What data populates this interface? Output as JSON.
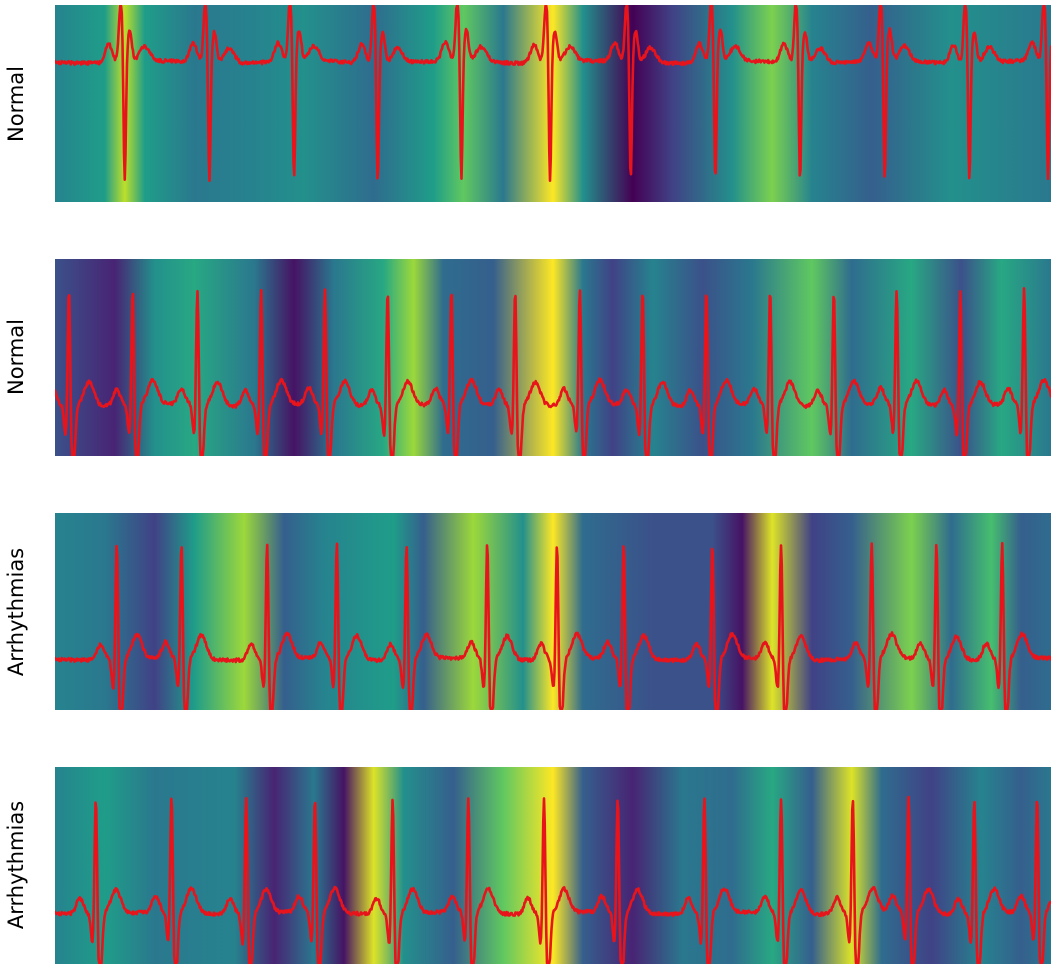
{
  "chart_data": [
    {
      "type": "line",
      "label": "Normal",
      "trace_color": "#e8141c",
      "beats": [
        0.07,
        0.155,
        0.24,
        0.324,
        0.408,
        0.497,
        0.578,
        0.663,
        0.748,
        0.833,
        0.918,
        0.997
      ],
      "beat_polarity": "inverted",
      "attention_bands": [
        {
          "x": 0.0,
          "v": 0.45
        },
        {
          "x": 0.05,
          "v": 0.55
        },
        {
          "x": 0.07,
          "v": 0.9
        },
        {
          "x": 0.09,
          "v": 0.55
        },
        {
          "x": 0.14,
          "v": 0.4
        },
        {
          "x": 0.2,
          "v": 0.45
        },
        {
          "x": 0.25,
          "v": 0.5
        },
        {
          "x": 0.32,
          "v": 0.35
        },
        {
          "x": 0.38,
          "v": 0.55
        },
        {
          "x": 0.41,
          "v": 0.75
        },
        {
          "x": 0.45,
          "v": 0.4
        },
        {
          "x": 0.5,
          "v": 1.0
        },
        {
          "x": 0.53,
          "v": 0.5
        },
        {
          "x": 0.58,
          "v": 0.0
        },
        {
          "x": 0.62,
          "v": 0.2
        },
        {
          "x": 0.68,
          "v": 0.5
        },
        {
          "x": 0.72,
          "v": 0.8
        },
        {
          "x": 0.76,
          "v": 0.45
        },
        {
          "x": 0.82,
          "v": 0.3
        },
        {
          "x": 0.9,
          "v": 0.5
        },
        {
          "x": 1.0,
          "v": 0.4
        }
      ]
    },
    {
      "type": "line",
      "label": "Normal",
      "trace_color": "#e8141c",
      "beats": [
        0.014,
        0.078,
        0.143,
        0.207,
        0.271,
        0.334,
        0.398,
        0.462,
        0.527,
        0.59,
        0.654,
        0.718,
        0.782,
        0.845,
        0.909,
        0.973
      ],
      "beat_polarity": "upright",
      "attention_bands": [
        {
          "x": 0.0,
          "v": 0.25
        },
        {
          "x": 0.06,
          "v": 0.1
        },
        {
          "x": 0.1,
          "v": 0.5
        },
        {
          "x": 0.14,
          "v": 0.6
        },
        {
          "x": 0.2,
          "v": 0.4
        },
        {
          "x": 0.24,
          "v": 0.05
        },
        {
          "x": 0.28,
          "v": 0.4
        },
        {
          "x": 0.33,
          "v": 0.6
        },
        {
          "x": 0.36,
          "v": 0.85
        },
        {
          "x": 0.39,
          "v": 0.35
        },
        {
          "x": 0.44,
          "v": 0.3
        },
        {
          "x": 0.5,
          "v": 1.0
        },
        {
          "x": 0.53,
          "v": 0.4
        },
        {
          "x": 0.56,
          "v": 0.2
        },
        {
          "x": 0.6,
          "v": 0.45
        },
        {
          "x": 0.65,
          "v": 0.25
        },
        {
          "x": 0.7,
          "v": 0.4
        },
        {
          "x": 0.76,
          "v": 0.75
        },
        {
          "x": 0.8,
          "v": 0.35
        },
        {
          "x": 0.86,
          "v": 0.6
        },
        {
          "x": 0.91,
          "v": 0.25
        },
        {
          "x": 0.95,
          "v": 0.6
        },
        {
          "x": 1.0,
          "v": 0.4
        }
      ]
    },
    {
      "type": "line",
      "label": "Arrhythmias",
      "trace_color": "#e8141c",
      "beats": [
        0.062,
        0.127,
        0.213,
        0.283,
        0.353,
        0.434,
        0.504,
        0.571,
        0.66,
        0.729,
        0.82,
        0.885,
        0.951
      ],
      "beat_polarity": "upright",
      "attention_bands": [
        {
          "x": 0.0,
          "v": 0.45
        },
        {
          "x": 0.05,
          "v": 0.4
        },
        {
          "x": 0.1,
          "v": 0.2
        },
        {
          "x": 0.14,
          "v": 0.55
        },
        {
          "x": 0.19,
          "v": 0.85
        },
        {
          "x": 0.23,
          "v": 0.3
        },
        {
          "x": 0.27,
          "v": 0.45
        },
        {
          "x": 0.34,
          "v": 0.55
        },
        {
          "x": 0.37,
          "v": 0.3
        },
        {
          "x": 0.42,
          "v": 0.85
        },
        {
          "x": 0.47,
          "v": 0.5
        },
        {
          "x": 0.5,
          "v": 1.0
        },
        {
          "x": 0.53,
          "v": 0.35
        },
        {
          "x": 0.6,
          "v": 0.25
        },
        {
          "x": 0.66,
          "v": 0.25
        },
        {
          "x": 0.69,
          "v": 0.05
        },
        {
          "x": 0.72,
          "v": 0.95
        },
        {
          "x": 0.76,
          "v": 0.2
        },
        {
          "x": 0.8,
          "v": 0.3
        },
        {
          "x": 0.86,
          "v": 0.8
        },
        {
          "x": 0.9,
          "v": 0.35
        },
        {
          "x": 0.94,
          "v": 0.7
        },
        {
          "x": 0.97,
          "v": 0.3
        },
        {
          "x": 1.0,
          "v": 0.35
        }
      ]
    },
    {
      "type": "line",
      "label": "Arrhythmias",
      "trace_color": "#e8141c",
      "beats": [
        0.041,
        0.117,
        0.192,
        0.261,
        0.339,
        0.415,
        0.491,
        0.565,
        0.652,
        0.729,
        0.801,
        0.857,
        0.923,
        0.986
      ],
      "beat_polarity": "upright",
      "attention_bands": [
        {
          "x": 0.0,
          "v": 0.45
        },
        {
          "x": 0.05,
          "v": 0.55
        },
        {
          "x": 0.1,
          "v": 0.4
        },
        {
          "x": 0.18,
          "v": 0.45
        },
        {
          "x": 0.22,
          "v": 0.1
        },
        {
          "x": 0.26,
          "v": 0.4
        },
        {
          "x": 0.29,
          "v": 0.05
        },
        {
          "x": 0.32,
          "v": 0.95
        },
        {
          "x": 0.35,
          "v": 0.5
        },
        {
          "x": 0.4,
          "v": 0.3
        },
        {
          "x": 0.45,
          "v": 0.75
        },
        {
          "x": 0.5,
          "v": 1.0
        },
        {
          "x": 0.53,
          "v": 0.3
        },
        {
          "x": 0.58,
          "v": 0.1
        },
        {
          "x": 0.63,
          "v": 0.4
        },
        {
          "x": 0.68,
          "v": 0.35
        },
        {
          "x": 0.72,
          "v": 0.6
        },
        {
          "x": 0.76,
          "v": 0.3
        },
        {
          "x": 0.8,
          "v": 0.95
        },
        {
          "x": 0.83,
          "v": 0.35
        },
        {
          "x": 0.88,
          "v": 0.2
        },
        {
          "x": 0.93,
          "v": 0.45
        },
        {
          "x": 0.97,
          "v": 0.3
        },
        {
          "x": 1.0,
          "v": 0.4
        }
      ]
    }
  ]
}
